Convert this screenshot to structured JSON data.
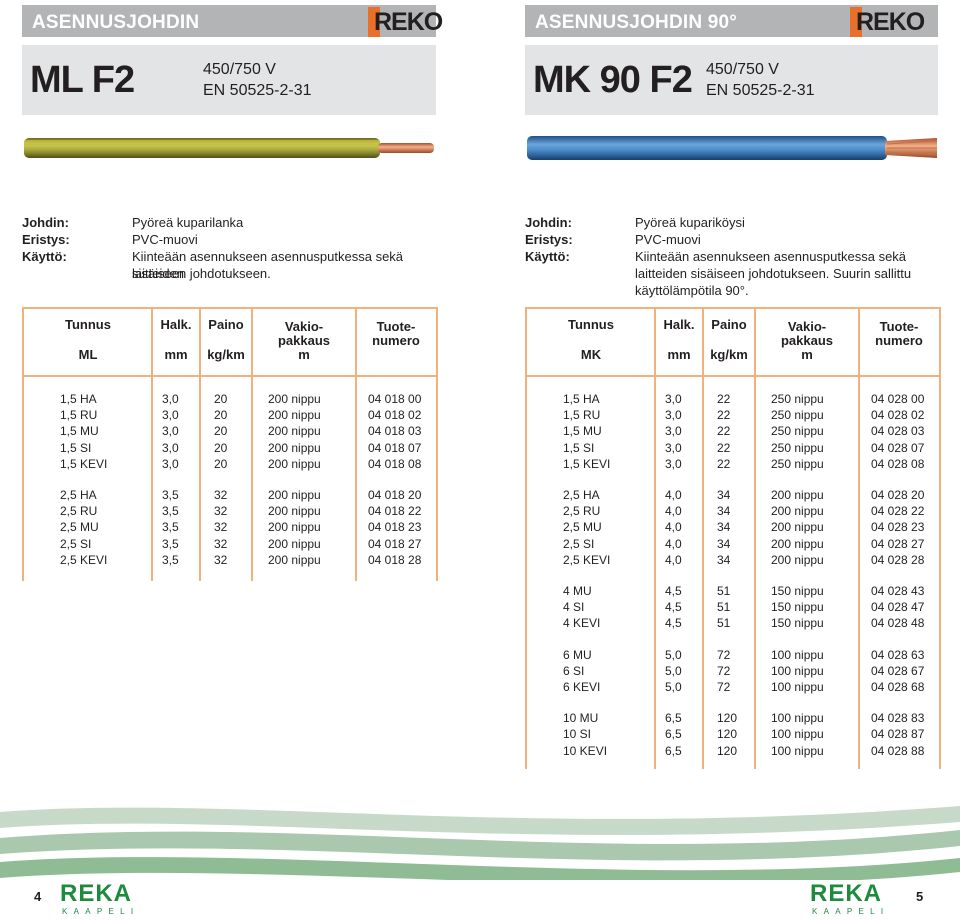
{
  "left": {
    "header_title": "ASENNUSJOHDIN",
    "logo": "REKO",
    "code": "ML F2",
    "voltage": "450/750 V",
    "standard": "EN 50525-2-31",
    "cable_colors": {
      "main": "#a8a93a",
      "stripe": "#c9b83a",
      "copper": "#e8966b"
    },
    "johdin_label": "Johdin:",
    "johdin": "Pyöreä kuparilanka",
    "eristys_label": "Eristys:",
    "eristys": "PVC-muovi",
    "kaytto_label": "Käyttö:",
    "kaytto_1": "Kiinteään asennukseen asennusputkessa sekä laitteiden",
    "kaytto_2": "sisäiseen johdotukseen.",
    "headers": {
      "tunnus": "Tunnus",
      "type": "ML",
      "halk": "Halk.",
      "halk_unit": "mm",
      "paino": "Paino",
      "paino_unit": "kg/km",
      "vakio1": "Vakio-",
      "vakio2": "pakkaus",
      "vakio_unit": "m",
      "tuote1": "Tuote-",
      "tuote2": "numero"
    },
    "groups": [
      [
        [
          "1,5 HA",
          "3,0",
          "20",
          "200 nippu",
          "04 018 00"
        ],
        [
          "1,5 RU",
          "3,0",
          "20",
          "200 nippu",
          "04 018 02"
        ],
        [
          "1,5 MU",
          "3,0",
          "20",
          "200 nippu",
          "04 018 03"
        ],
        [
          "1,5 SI",
          "3,0",
          "20",
          "200 nippu",
          "04 018 07"
        ],
        [
          "1,5 KEVI",
          "3,0",
          "20",
          "200 nippu",
          "04 018 08"
        ]
      ],
      [
        [
          "2,5 HA",
          "3,5",
          "32",
          "200 nippu",
          "04 018 20"
        ],
        [
          "2,5 RU",
          "3,5",
          "32",
          "200 nippu",
          "04 018 22"
        ],
        [
          "2,5 MU",
          "3,5",
          "32",
          "200 nippu",
          "04 018 23"
        ],
        [
          "2,5 SI",
          "3,5",
          "32",
          "200 nippu",
          "04 018 27"
        ],
        [
          "2,5 KEVI",
          "3,5",
          "32",
          "200 nippu",
          "04 018 28"
        ]
      ]
    ],
    "page": "4"
  },
  "right": {
    "header_title": "ASENNUSJOHDIN 90°",
    "logo": "REKO",
    "code": "MK 90 F2",
    "voltage": "450/750 V",
    "standard": "EN 50525-2-31",
    "cable_colors": {
      "main": "#4a8ac8",
      "copper": "#e8966b"
    },
    "johdin_label": "Johdin:",
    "johdin": "Pyöreä kupariköysi",
    "eristys_label": "Eristys:",
    "eristys": "PVC-muovi",
    "kaytto_label": "Käyttö:",
    "kaytto_1": "Kiinteään asennukseen asennusputkessa sekä",
    "kaytto_2": "laitteiden sisäiseen johdotukseen. Suurin sallittu",
    "kaytto_3": "käyttölämpötila 90°.",
    "headers": {
      "tunnus": "Tunnus",
      "type": "MK",
      "halk": "Halk.",
      "halk_unit": "mm",
      "paino": "Paino",
      "paino_unit": "kg/km",
      "vakio1": "Vakio-",
      "vakio2": "pakkaus",
      "vakio_unit": "m",
      "tuote1": "Tuote-",
      "tuote2": "numero"
    },
    "groups": [
      [
        [
          "1,5 HA",
          "3,0",
          "22",
          "250 nippu",
          "04 028 00"
        ],
        [
          "1,5 RU",
          "3,0",
          "22",
          "250 nippu",
          "04 028 02"
        ],
        [
          "1,5 MU",
          "3,0",
          "22",
          "250 nippu",
          "04 028 03"
        ],
        [
          "1,5 SI",
          "3,0",
          "22",
          "250 nippu",
          "04 028 07"
        ],
        [
          "1,5 KEVI",
          "3,0",
          "22",
          "250 nippu",
          "04 028 08"
        ]
      ],
      [
        [
          "2,5 HA",
          "4,0",
          "34",
          "200 nippu",
          "04 028 20"
        ],
        [
          "2,5 RU",
          "4,0",
          "34",
          "200 nippu",
          "04 028 22"
        ],
        [
          "2,5 MU",
          "4,0",
          "34",
          "200 nippu",
          "04 028 23"
        ],
        [
          "2,5 SI",
          "4,0",
          "34",
          "200 nippu",
          "04 028 27"
        ],
        [
          "2,5 KEVI",
          "4,0",
          "34",
          "200 nippu",
          "04 028 28"
        ]
      ],
      [
        [
          "4 MU",
          "4,5",
          "51",
          "150 nippu",
          "04 028 43"
        ],
        [
          "4 SI",
          "4,5",
          "51",
          "150 nippu",
          "04 028 47"
        ],
        [
          "4 KEVI",
          "4,5",
          "51",
          "150 nippu",
          "04 028 48"
        ]
      ],
      [
        [
          "6 MU",
          "5,0",
          "72",
          "100 nippu",
          "04 028 63"
        ],
        [
          "6 SI",
          "5,0",
          "72",
          "100 nippu",
          "04 028 67"
        ],
        [
          "6 KEVI",
          "5,0",
          "72",
          "100 nippu",
          "04 028 68"
        ]
      ],
      [
        [
          "10 MU",
          "6,5",
          "120",
          "100 nippu",
          "04 028 83"
        ],
        [
          "10 SI",
          "6,5",
          "120",
          "100 nippu",
          "04 028 87"
        ],
        [
          "10 KEVI",
          "6,5",
          "120",
          "100 nippu",
          "04 028 88"
        ]
      ]
    ],
    "page": "5"
  },
  "footer_logo": {
    "main": "REKA",
    "sub": "KAAPELI",
    "color": "#1d8a3c"
  }
}
